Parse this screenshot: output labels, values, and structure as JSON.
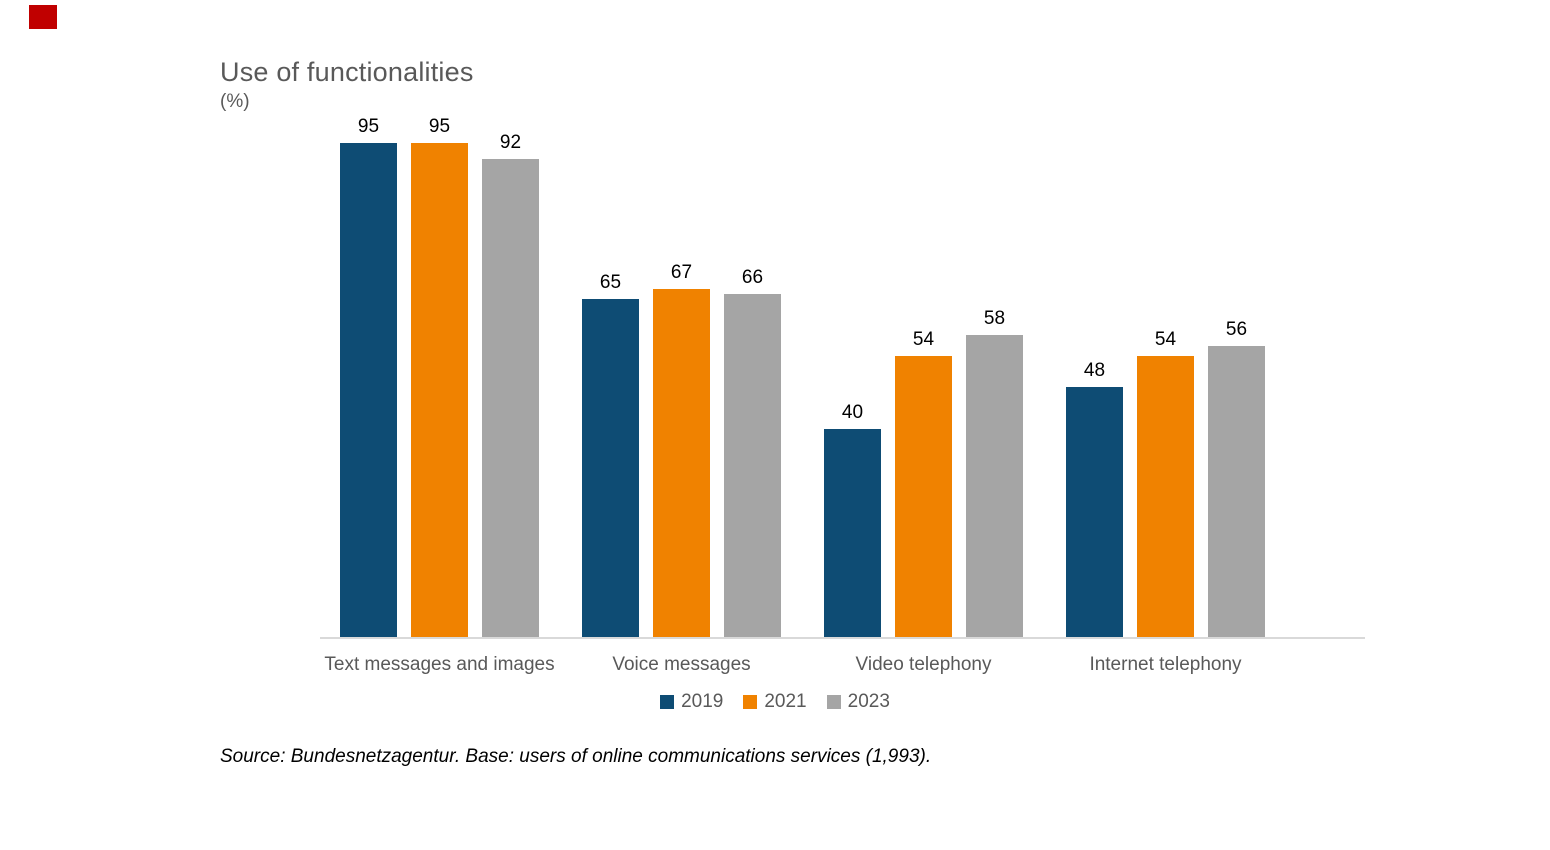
{
  "header": {
    "title": "Use of functionalities",
    "unit": "(%)"
  },
  "decor": {
    "red_marker_color": "#c00000"
  },
  "chart_data": {
    "type": "bar",
    "title": "Use of functionalities",
    "unit_label": "(%)",
    "categories": [
      "Text messages and images",
      "Voice messages",
      "Video telephony",
      "Internet telephony"
    ],
    "series": [
      {
        "name": "2019",
        "color": "#0e4c74",
        "values": [
          95,
          65,
          40,
          48
        ]
      },
      {
        "name": "2021",
        "color": "#f08200",
        "values": [
          95,
          67,
          54,
          54
        ]
      },
      {
        "name": "2023",
        "color": "#a5a5a5",
        "values": [
          92,
          66,
          58,
          56
        ]
      }
    ],
    "ylim": [
      0,
      100
    ],
    "grid": false,
    "value_labels": true,
    "legend_position": "bottom",
    "axis_line_color": "#d9d9d9",
    "label_color": "#595959",
    "value_label_color": "#000000"
  },
  "source": {
    "text": "Source: Bundesnetzagentur. Base: users of online communications services (1,993)."
  }
}
